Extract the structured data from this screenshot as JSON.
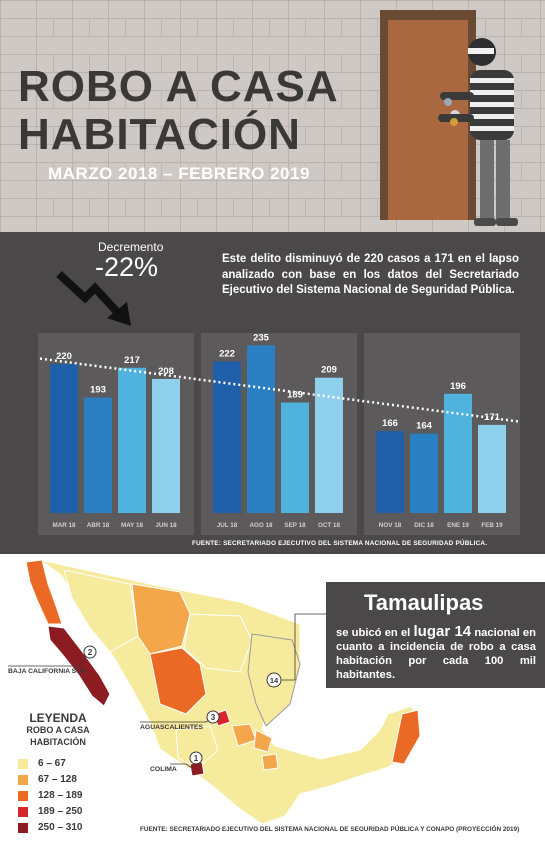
{
  "header": {
    "title_line1": "ROBO A CASA",
    "title_line2": "HABITACIÓN",
    "period": "MARZO 2018  – FEBRERO 2019"
  },
  "summary": {
    "change_label": "Decremento",
    "change_value": "-22%",
    "description": "Este delito disminuyó de 220 casos a 171 en el lapso analizado con base en los datos del Secretariado Ejecutivo del Sistema Nacional de Seguridad Pública."
  },
  "chart_data": {
    "type": "bar",
    "categories": [
      "MAR 18",
      "ABR 18",
      "MAY 18",
      "JUN 18",
      "JUL 18",
      "AGO 18",
      "SEP 18",
      "OCT 18",
      "NOV 18",
      "DIC 18",
      "ENE 19",
      "FEB 19"
    ],
    "values": [
      220,
      193,
      217,
      208,
      222,
      235,
      189,
      209,
      166,
      164,
      196,
      171
    ],
    "ylim": [
      100,
      245
    ],
    "trendline": true,
    "grid": false,
    "bar_colors": [
      "#1f5ea8",
      "#2b7fc3",
      "#4fb3de",
      "#8fd0ec",
      "#1f5ea8",
      "#2b7fc3",
      "#4fb3de",
      "#8fd0ec",
      "#1f5ea8",
      "#2b7fc3",
      "#4fb3de",
      "#8fd0ec"
    ],
    "source": "FUENTE: SECRETARIADO EJECUTIVO DEL SISTEMA NACIONAL DE SEGURIDAD PÚBLICA."
  },
  "map": {
    "highlight": {
      "state": "Tamaulipas",
      "prefix": "se ubicó en el",
      "rank_text": "lugar 14",
      "suffix": "nacional en cuanto a incidencia de robo a casa habitación por cada 100 mil habitantes.",
      "rank_marker": "14"
    },
    "callouts": [
      {
        "rank": "2",
        "state": "BAJA CALIFORNIA SUR"
      },
      {
        "rank": "3",
        "state": "AGUASCALIENTES"
      },
      {
        "rank": "1",
        "state": "COLIMA"
      }
    ],
    "legend": {
      "title": "LEYENDA",
      "subtitle_1": "ROBO A CASA",
      "subtitle_2": "HABITACIÓN",
      "items": [
        {
          "range": "6 – 67",
          "color": "#f6ea9c"
        },
        {
          "range": "67 – 128",
          "color": "#f3a64a"
        },
        {
          "range": "128 – 189",
          "color": "#ea6a25"
        },
        {
          "range": "189 – 250",
          "color": "#d6262b"
        },
        {
          "range": "250 – 310",
          "color": "#8c1c22"
        }
      ]
    },
    "source": "FUENTE: SECRETARIADO EJECUTIVO DEL SISTEMA NACIONAL DE SEGURIDAD PÚBLICA Y CONAPO (PROYECCIÓN 2019)"
  }
}
